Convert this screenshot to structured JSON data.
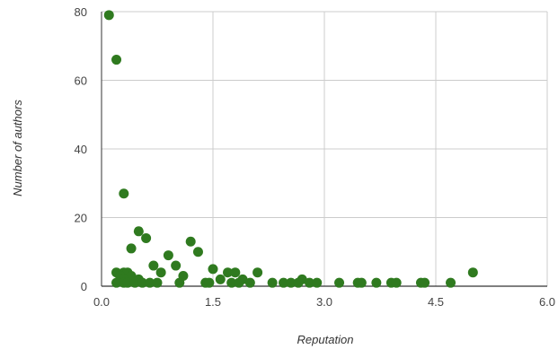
{
  "chart_data": {
    "type": "scatter",
    "title": "",
    "xlabel": "Reputation",
    "ylabel": "Number of authors",
    "xlim": [
      0,
      6
    ],
    "ylim": [
      0,
      80
    ],
    "x_ticks": [
      0,
      1.5,
      3,
      4.5,
      6
    ],
    "x_tick_labels": [
      "0.0",
      "1.5",
      "3.0",
      "4.5",
      "6.0"
    ],
    "y_ticks": [
      0,
      20,
      40,
      60,
      80
    ],
    "y_tick_labels": [
      "0",
      "20",
      "40",
      "60",
      "80"
    ],
    "grid": true,
    "legend": "none",
    "marker_color": "#2f7a1f",
    "series": [
      {
        "points": [
          [
            0.1,
            79
          ],
          [
            0.2,
            66
          ],
          [
            0.3,
            27
          ],
          [
            0.5,
            16
          ],
          [
            0.6,
            14
          ],
          [
            1.2,
            13
          ],
          [
            0.4,
            11
          ],
          [
            1.3,
            10
          ],
          [
            0.9,
            9
          ],
          [
            0.7,
            6
          ],
          [
            1.0,
            6
          ],
          [
            1.5,
            5
          ],
          [
            0.8,
            4
          ],
          [
            0.2,
            4
          ],
          [
            0.3,
            4
          ],
          [
            0.35,
            4
          ],
          [
            1.7,
            4
          ],
          [
            1.8,
            4
          ],
          [
            2.1,
            4
          ],
          [
            5.0,
            4
          ],
          [
            0.25,
            3
          ],
          [
            0.4,
            3
          ],
          [
            1.1,
            3
          ],
          [
            0.3,
            2
          ],
          [
            0.5,
            2
          ],
          [
            1.6,
            2
          ],
          [
            1.9,
            2
          ],
          [
            2.7,
            2
          ],
          [
            0.2,
            1
          ],
          [
            0.3,
            1
          ],
          [
            0.35,
            1
          ],
          [
            0.45,
            1
          ],
          [
            0.55,
            1
          ],
          [
            0.65,
            1
          ],
          [
            0.75,
            1
          ],
          [
            1.05,
            1
          ],
          [
            1.4,
            1
          ],
          [
            1.45,
            1
          ],
          [
            1.75,
            1
          ],
          [
            1.85,
            1
          ],
          [
            2.0,
            1
          ],
          [
            2.3,
            1
          ],
          [
            2.45,
            1
          ],
          [
            2.55,
            1
          ],
          [
            2.65,
            1
          ],
          [
            2.8,
            1
          ],
          [
            2.9,
            1
          ],
          [
            3.2,
            1
          ],
          [
            3.45,
            1
          ],
          [
            3.5,
            1
          ],
          [
            3.7,
            1
          ],
          [
            3.9,
            1
          ],
          [
            3.97,
            1
          ],
          [
            4.3,
            1
          ],
          [
            4.35,
            1
          ],
          [
            4.7,
            1
          ]
        ]
      }
    ]
  }
}
